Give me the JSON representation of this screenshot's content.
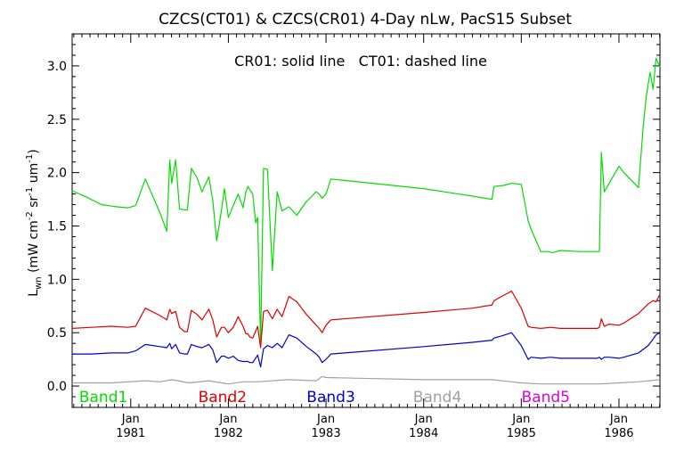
{
  "chart_data": {
    "type": "line",
    "title": "CZCS(CT01) & CZCS(CR01) 4-Day nLw, PacS15 Subset",
    "annotation": "CR01: solid line   CT01: dashed line",
    "ylabel": {
      "main": "L",
      "sub": "wn",
      "unit_open": " (mW cm",
      "sup1": "-2",
      "mid1": " sr",
      "sup2": "-1",
      "mid2": " um",
      "sup3": "-1",
      "unit_close": ")"
    },
    "xlabel": "",
    "x_range": [
      1980.4,
      1986.42
    ],
    "ylim": [
      -0.2,
      3.3
    ],
    "y_ticks": [
      0.0,
      0.5,
      1.0,
      1.5,
      2.0,
      2.5,
      3.0
    ],
    "y_tick_labels": [
      "0.0",
      "0.5",
      "1.0",
      "1.5",
      "2.0",
      "2.5",
      "3.0"
    ],
    "x_major_ticks": [
      {
        "x": 1981.0,
        "top": "Jan",
        "bottom": "1981"
      },
      {
        "x": 1982.0,
        "top": "Jan",
        "bottom": "1982"
      },
      {
        "x": 1983.0,
        "top": "Jan",
        "bottom": "1983"
      },
      {
        "x": 1984.0,
        "top": "Jan",
        "bottom": "1984"
      },
      {
        "x": 1985.0,
        "top": "Jan",
        "bottom": "1985"
      },
      {
        "x": 1986.0,
        "top": "Jan",
        "bottom": "1986"
      }
    ],
    "grid": false,
    "legend": [
      {
        "label": "Band1",
        "color": "#00dd00",
        "x": 1980.72
      },
      {
        "label": "Band2",
        "color": "#dd0000",
        "x": 1981.94
      },
      {
        "label": "Band3",
        "color": "#0000cc",
        "x": 1983.05
      },
      {
        "label": "Band4",
        "color": "#a0a0a0",
        "x": 1984.14
      },
      {
        "label": "Band5",
        "color": "#dd00dd",
        "x": 1985.25
      }
    ],
    "series": [
      {
        "name": "Band1",
        "color": "#00dd00",
        "x": [
          1980.4,
          1980.55,
          1980.7,
          1980.85,
          1980.97,
          1981.05,
          1981.15,
          1981.3,
          1981.37,
          1981.4,
          1981.42,
          1981.46,
          1981.5,
          1981.55,
          1981.58,
          1981.62,
          1981.68,
          1981.73,
          1981.8,
          1981.84,
          1981.88,
          1981.93,
          1981.96,
          1982.0,
          1982.05,
          1982.1,
          1982.15,
          1982.18,
          1982.2,
          1982.22,
          1982.25,
          1982.28,
          1982.3,
          1982.33,
          1982.36,
          1982.4,
          1982.45,
          1982.5,
          1982.55,
          1982.62,
          1982.7,
          1982.8,
          1982.9,
          1982.93,
          1982.96,
          1983.0,
          1983.05,
          1984.0,
          1984.5,
          1984.7,
          1984.72,
          1984.82,
          1984.9,
          1985.0,
          1985.07,
          1985.1,
          1985.2,
          1985.28,
          1985.32,
          1985.4,
          1985.6,
          1985.78,
          1985.8,
          1985.82,
          1985.85,
          1985.9,
          1986.0,
          1986.05,
          1986.2,
          1986.25,
          1986.28,
          1986.32,
          1986.35,
          1986.38,
          1986.42
        ],
        "y": [
          1.83,
          1.77,
          1.7,
          1.68,
          1.67,
          1.69,
          1.94,
          1.62,
          1.45,
          2.12,
          1.9,
          2.12,
          1.66,
          1.65,
          1.65,
          2.04,
          1.95,
          1.82,
          1.96,
          1.74,
          1.36,
          1.65,
          1.85,
          1.58,
          1.69,
          1.8,
          1.67,
          1.82,
          1.87,
          1.84,
          1.8,
          1.53,
          1.58,
          0.38,
          2.04,
          2.03,
          1.08,
          1.82,
          1.64,
          1.68,
          1.6,
          1.73,
          1.82,
          1.8,
          1.76,
          1.8,
          1.94,
          1.85,
          1.78,
          1.75,
          1.87,
          1.88,
          1.9,
          1.89,
          1.55,
          1.47,
          1.26,
          1.26,
          1.25,
          1.27,
          1.26,
          1.26,
          1.26,
          2.19,
          1.82,
          1.9,
          2.06,
          2.0,
          1.86,
          2.45,
          2.72,
          2.94,
          2.78,
          3.07,
          2.99
        ]
      },
      {
        "name": "Band2",
        "color": "#dd0000",
        "x": [
          1980.4,
          1980.6,
          1980.8,
          1980.97,
          1981.05,
          1981.15,
          1981.3,
          1981.37,
          1981.4,
          1981.42,
          1981.46,
          1981.5,
          1981.55,
          1981.58,
          1981.62,
          1981.68,
          1981.73,
          1981.8,
          1981.84,
          1981.88,
          1981.93,
          1981.96,
          1982.0,
          1982.05,
          1982.1,
          1982.15,
          1982.18,
          1982.2,
          1982.22,
          1982.25,
          1982.3,
          1982.33,
          1982.36,
          1982.4,
          1982.45,
          1982.5,
          1982.55,
          1982.62,
          1982.7,
          1982.8,
          1982.9,
          1982.93,
          1982.96,
          1983.0,
          1983.05,
          1984.0,
          1984.5,
          1984.7,
          1984.72,
          1984.8,
          1984.9,
          1985.0,
          1985.07,
          1985.1,
          1985.2,
          1985.3,
          1985.4,
          1985.6,
          1985.78,
          1985.8,
          1985.82,
          1985.85,
          1985.9,
          1986.0,
          1986.05,
          1986.2,
          1986.3,
          1986.35,
          1986.38,
          1986.42
        ],
        "y": [
          0.54,
          0.55,
          0.56,
          0.55,
          0.56,
          0.73,
          0.66,
          0.62,
          0.72,
          0.68,
          0.7,
          0.55,
          0.51,
          0.51,
          0.71,
          0.67,
          0.62,
          0.72,
          0.62,
          0.46,
          0.55,
          0.55,
          0.5,
          0.55,
          0.65,
          0.56,
          0.49,
          0.49,
          0.46,
          0.45,
          0.56,
          0.36,
          0.7,
          0.71,
          0.63,
          0.72,
          0.65,
          0.84,
          0.79,
          0.67,
          0.57,
          0.54,
          0.5,
          0.57,
          0.62,
          0.69,
          0.73,
          0.76,
          0.8,
          0.84,
          0.89,
          0.73,
          0.56,
          0.55,
          0.54,
          0.55,
          0.54,
          0.54,
          0.54,
          0.55,
          0.63,
          0.56,
          0.58,
          0.57,
          0.59,
          0.68,
          0.77,
          0.8,
          0.79,
          0.86
        ]
      },
      {
        "name": "Band3",
        "color": "#0000cc",
        "x": [
          1980.4,
          1980.6,
          1980.8,
          1980.97,
          1981.05,
          1981.15,
          1981.3,
          1981.37,
          1981.4,
          1981.42,
          1981.46,
          1981.5,
          1981.55,
          1981.58,
          1981.62,
          1981.68,
          1981.73,
          1981.8,
          1981.84,
          1981.88,
          1981.93,
          1981.96,
          1982.0,
          1982.05,
          1982.1,
          1982.15,
          1982.18,
          1982.2,
          1982.22,
          1982.25,
          1982.3,
          1982.33,
          1982.36,
          1982.4,
          1982.45,
          1982.5,
          1982.55,
          1982.62,
          1982.7,
          1982.8,
          1982.9,
          1982.93,
          1982.96,
          1983.0,
          1983.05,
          1984.0,
          1984.5,
          1984.7,
          1984.72,
          1984.8,
          1984.9,
          1985.0,
          1985.07,
          1985.1,
          1985.2,
          1985.3,
          1985.4,
          1985.6,
          1985.78,
          1985.8,
          1985.82,
          1985.85,
          1985.9,
          1986.0,
          1986.05,
          1986.2,
          1986.3,
          1986.35,
          1986.38,
          1986.42
        ],
        "y": [
          0.3,
          0.3,
          0.31,
          0.31,
          0.33,
          0.39,
          0.37,
          0.36,
          0.4,
          0.35,
          0.39,
          0.31,
          0.3,
          0.3,
          0.39,
          0.37,
          0.36,
          0.39,
          0.34,
          0.22,
          0.28,
          0.28,
          0.26,
          0.28,
          0.24,
          0.23,
          0.23,
          0.23,
          0.22,
          0.22,
          0.29,
          0.18,
          0.35,
          0.38,
          0.36,
          0.4,
          0.36,
          0.48,
          0.45,
          0.37,
          0.3,
          0.27,
          0.22,
          0.25,
          0.3,
          0.37,
          0.41,
          0.43,
          0.45,
          0.47,
          0.5,
          0.38,
          0.25,
          0.27,
          0.26,
          0.27,
          0.26,
          0.26,
          0.26,
          0.27,
          0.25,
          0.27,
          0.27,
          0.26,
          0.27,
          0.31,
          0.38,
          0.44,
          0.48,
          0.5
        ]
      },
      {
        "name": "Band4",
        "color": "#a0a0a0",
        "x": [
          1980.4,
          1980.8,
          1981.15,
          1981.3,
          1981.42,
          1981.6,
          1981.8,
          1982.0,
          1982.15,
          1982.3,
          1982.6,
          1982.9,
          1982.96,
          1983.0,
          1983.5,
          1984.0,
          1984.5,
          1984.7,
          1984.9,
          1985.0,
          1985.2,
          1985.5,
          1985.8,
          1986.0,
          1986.2,
          1986.42
        ],
        "y": [
          0.03,
          0.03,
          0.05,
          0.04,
          0.06,
          0.03,
          0.05,
          0.02,
          0.04,
          0.04,
          0.06,
          0.05,
          0.09,
          0.08,
          0.07,
          0.06,
          0.06,
          0.06,
          0.04,
          0.03,
          0.02,
          0.02,
          0.02,
          0.03,
          0.04,
          0.06
        ]
      }
    ]
  }
}
